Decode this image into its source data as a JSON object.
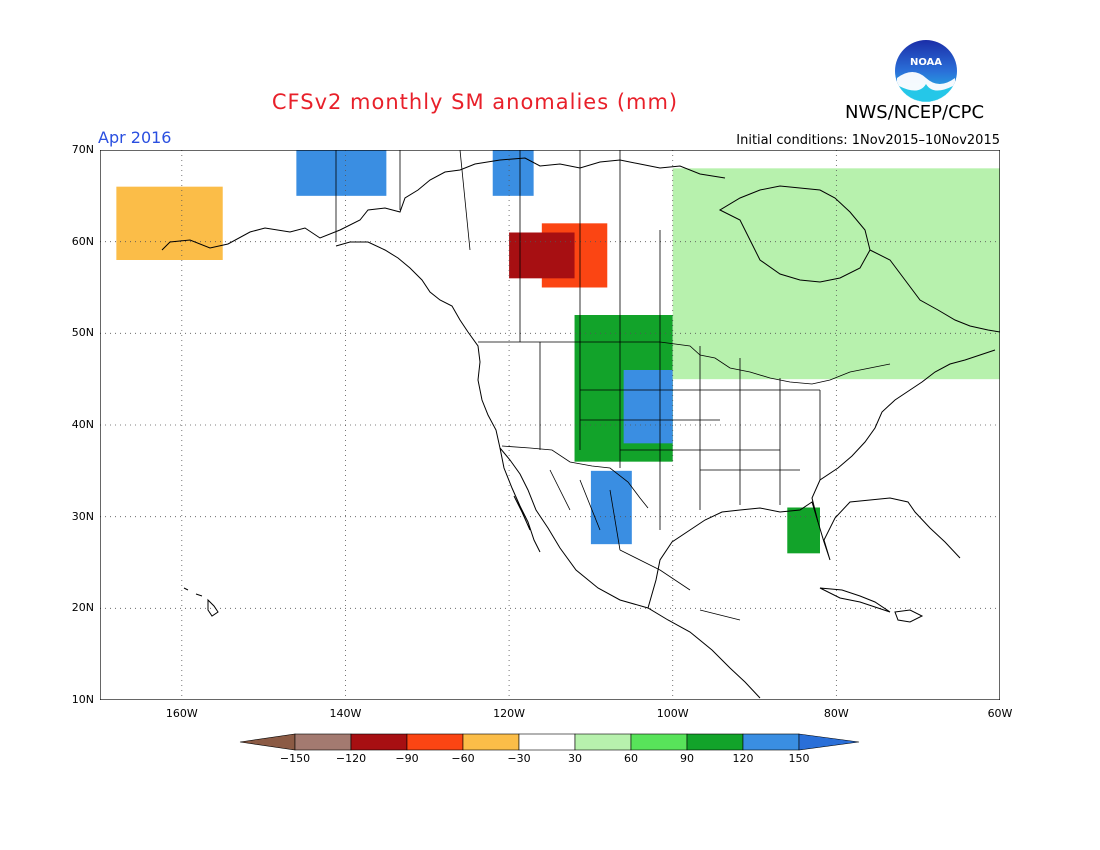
{
  "header": {
    "title": "CFSv2 monthly SM anomalies (mm)",
    "agency": "NWS/NCEP/CPC",
    "period": "Apr 2016",
    "initial_conditions": "Initial conditions: 1Nov2015–10Nov2015"
  },
  "logo": {
    "text": "NOAA"
  },
  "map": {
    "lat_labels": [
      "70N",
      "60N",
      "50N",
      "40N",
      "30N",
      "20N",
      "10N"
    ],
    "lon_labels": [
      "160W",
      "140W",
      "120W",
      "100W",
      "80W",
      "60W"
    ]
  },
  "legend": {
    "ticks": [
      "−150",
      "−120",
      "−90",
      "−60",
      "−30",
      "30",
      "60",
      "90",
      "120",
      "150"
    ],
    "colors": [
      "#8b5a44",
      "#a37a70",
      "#a70f12",
      "#fb4513",
      "#fbbd48",
      "#ffffff",
      "#b7f1ad",
      "#58e35a",
      "#12a32a",
      "#3a8ee2",
      "#2a6fd8"
    ],
    "bin_labels": [
      "<-150",
      "-150 to -120",
      "-120 to -90",
      "-90 to -60",
      "-60 to -30",
      "-30 to 30",
      "30 to 60",
      "60 to 90",
      "90 to 120",
      "120 to 150",
      ">150"
    ]
  },
  "chart_data": {
    "type": "heatmap",
    "title": "CFSv2 monthly SM anomalies (mm)",
    "units": "mm",
    "lon_range": [
      -170,
      -60
    ],
    "lat_range": [
      10,
      70
    ],
    "grid": "dotted",
    "regions": [
      {
        "lon": [
          -116,
          -108
        ],
        "lat": [
          55,
          62
        ],
        "anomaly_bin": "-90 to -60"
      },
      {
        "lon": [
          -120,
          -112
        ],
        "lat": [
          56,
          61
        ],
        "anomaly_bin": "-120 to -90"
      },
      {
        "lon": [
          -112,
          -100
        ],
        "lat": [
          36,
          52
        ],
        "anomaly_bin": "90 to 120"
      },
      {
        "lon": [
          -106,
          -100
        ],
        "lat": [
          38,
          46
        ],
        "anomaly_bin": "120 to 150"
      },
      {
        "lon": [
          -110,
          -105
        ],
        "lat": [
          27,
          35
        ],
        "anomaly_bin": "120 to 150"
      },
      {
        "lon": [
          -146,
          -135
        ],
        "lat": [
          65,
          70
        ],
        "anomaly_bin": "120 to 150"
      },
      {
        "lon": [
          -122,
          -117
        ],
        "lat": [
          65,
          70
        ],
        "anomaly_bin": "120 to 150"
      },
      {
        "lon": [
          -168,
          -155
        ],
        "lat": [
          58,
          66
        ],
        "anomaly_bin": "-60 to -30"
      },
      {
        "lon": [
          -100,
          -60
        ],
        "lat": [
          45,
          68
        ],
        "anomaly_bin": "30 to 60"
      },
      {
        "lon": [
          -86,
          -82
        ],
        "lat": [
          26,
          31
        ],
        "anomaly_bin": "90 to 120"
      }
    ]
  }
}
